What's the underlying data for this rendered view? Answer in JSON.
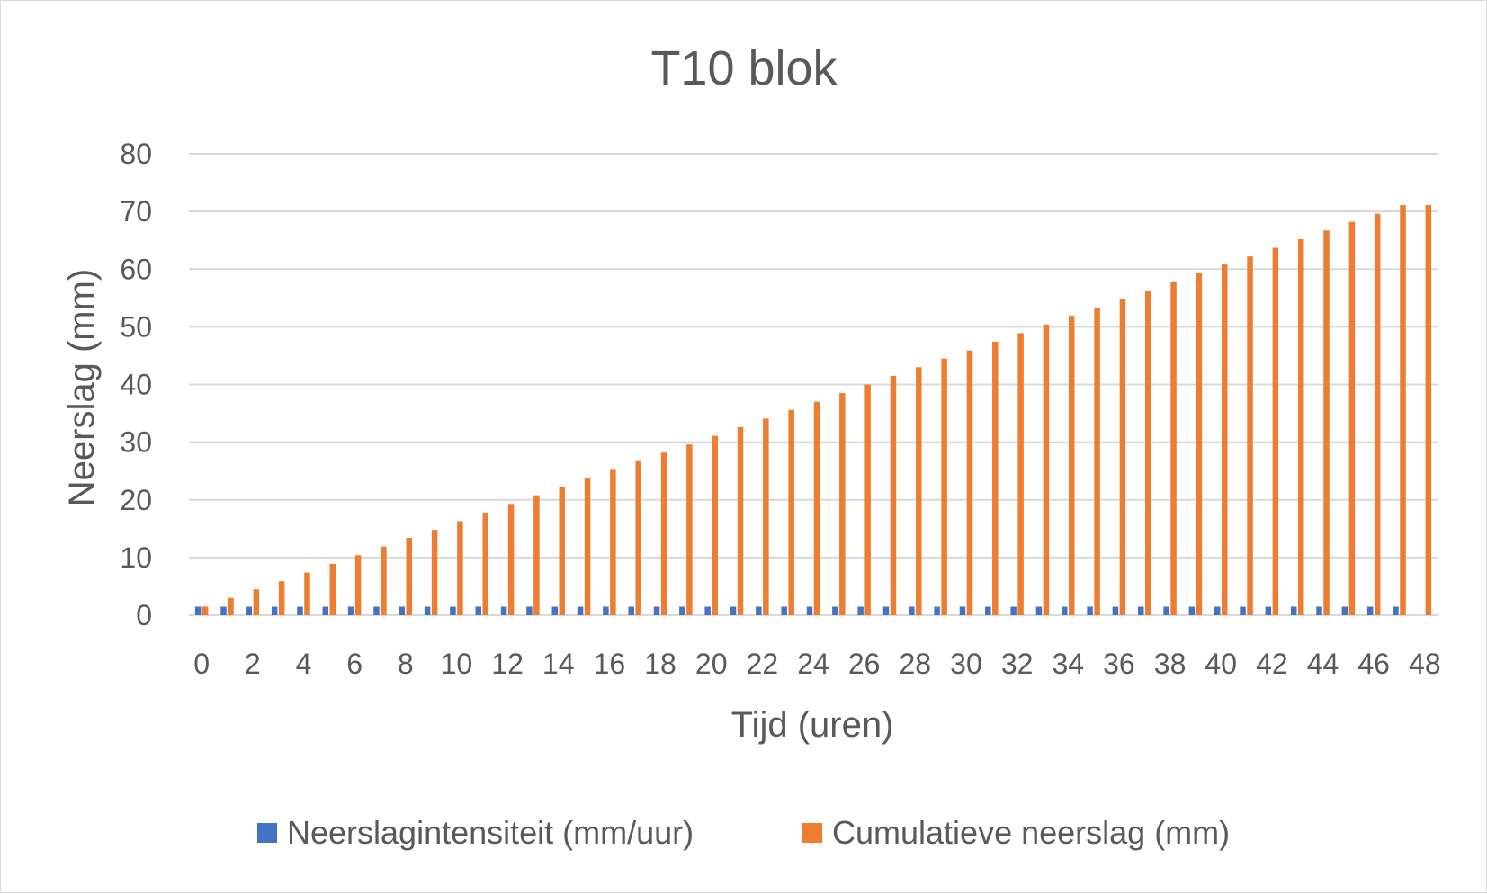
{
  "chart_data": {
    "type": "bar",
    "title": "T10 blok",
    "xlabel": "Tijd (uren)",
    "ylabel": "Neerslag (mm)",
    "ylim": [
      0,
      80
    ],
    "yticks": [
      0,
      10,
      20,
      30,
      40,
      50,
      60,
      70,
      80
    ],
    "grid": true,
    "legend_position": "bottom",
    "x": [
      0,
      1,
      2,
      3,
      4,
      5,
      6,
      7,
      8,
      9,
      10,
      11,
      12,
      13,
      14,
      15,
      16,
      17,
      18,
      19,
      20,
      21,
      22,
      23,
      24,
      25,
      26,
      27,
      28,
      29,
      30,
      31,
      32,
      33,
      34,
      35,
      36,
      37,
      38,
      39,
      40,
      41,
      42,
      43,
      44,
      45,
      46,
      47,
      48
    ],
    "xtick_labels": [
      "0",
      "2",
      "4",
      "6",
      "8",
      "10",
      "12",
      "14",
      "16",
      "18",
      "20",
      "22",
      "24",
      "26",
      "28",
      "30",
      "32",
      "34",
      "36",
      "38",
      "40",
      "42",
      "44",
      "46",
      "48"
    ],
    "series": [
      {
        "name": "Neerslagintensiteit (mm/uur)",
        "color": "#4472C4",
        "values": [
          1.48,
          1.48,
          1.48,
          1.48,
          1.48,
          1.48,
          1.48,
          1.48,
          1.48,
          1.48,
          1.48,
          1.48,
          1.48,
          1.48,
          1.48,
          1.48,
          1.48,
          1.48,
          1.48,
          1.48,
          1.48,
          1.48,
          1.48,
          1.48,
          1.48,
          1.48,
          1.48,
          1.48,
          1.48,
          1.48,
          1.48,
          1.48,
          1.48,
          1.48,
          1.48,
          1.48,
          1.48,
          1.48,
          1.48,
          1.48,
          1.48,
          1.48,
          1.48,
          1.48,
          1.48,
          1.48,
          1.48,
          1.48,
          0
        ]
      },
      {
        "name": "Cumulatieve neerslag (mm)",
        "color": "#ED7D31",
        "values": [
          1.5,
          3.0,
          4.5,
          5.9,
          7.4,
          8.9,
          10.4,
          11.9,
          13.4,
          14.8,
          16.3,
          17.8,
          19.3,
          20.8,
          22.2,
          23.7,
          25.2,
          26.7,
          28.2,
          29.6,
          31.1,
          32.6,
          34.1,
          35.6,
          37.0,
          38.5,
          40.0,
          41.5,
          43.0,
          44.5,
          45.9,
          47.4,
          48.9,
          50.4,
          51.9,
          53.3,
          54.8,
          56.3,
          57.8,
          59.3,
          60.8,
          62.2,
          63.7,
          65.2,
          66.7,
          68.2,
          69.6,
          71.1,
          71.1
        ]
      }
    ]
  }
}
